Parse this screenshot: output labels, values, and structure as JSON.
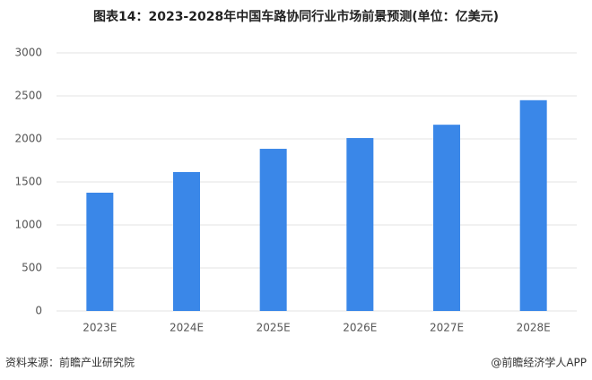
{
  "chart_data": {
    "type": "bar",
    "title": "图表14：2023-2028年中国车路协同行业市场前景预测(单位：亿美元)",
    "categories": [
      "2023E",
      "2024E",
      "2025E",
      "2026E",
      "2027E",
      "2028E"
    ],
    "values": [
      1375,
      1615,
      1885,
      2010,
      2165,
      2450
    ],
    "color": "#3a87e8",
    "ylim": [
      0,
      3000
    ],
    "yticks": [
      0,
      500,
      1000,
      1500,
      2000,
      2500,
      3000
    ],
    "grid": true,
    "source": "资料来源：前瞻产业研究院",
    "credit": "@前瞻经济学人APP"
  }
}
